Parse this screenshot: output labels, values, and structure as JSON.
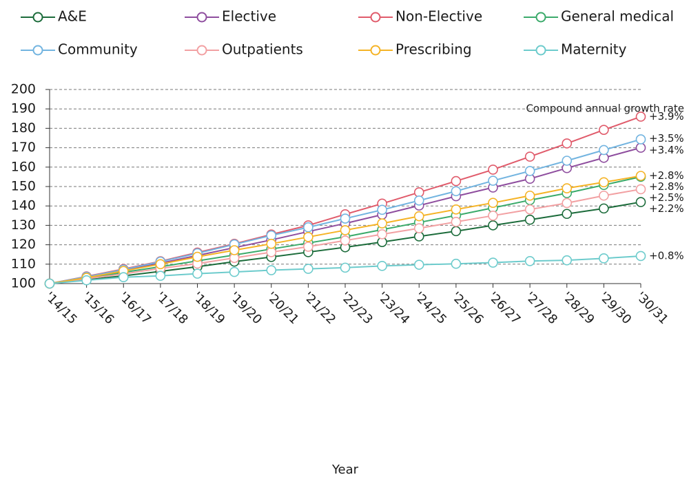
{
  "chart_data": {
    "type": "line",
    "annotation": "Compound annual growth rate",
    "x_label": "Year",
    "categories": [
      "'14/15",
      "'15/16",
      "'16/17",
      "'17/18",
      "'18/19",
      "'19/20",
      "'20/21",
      "'21/22",
      "'22/23",
      "'23/24",
      "'24/25",
      "'25/26",
      "'26/27",
      "'27/28",
      "'28/29",
      "'29/30",
      "'30/31"
    ],
    "ylim": [
      100,
      200
    ],
    "yticks": [
      100,
      110,
      120,
      130,
      140,
      150,
      160,
      170,
      180,
      190,
      200
    ],
    "grid": true,
    "series": [
      {
        "name": "A&E",
        "color": "#1b6b3a",
        "growth_label": "+2.2%",
        "values": [
          100,
          102,
          104,
          106.3,
          108.7,
          111.3,
          113.7,
          116.2,
          118.7,
          121.4,
          124.3,
          127,
          130,
          132.9,
          135.9,
          138.7,
          142
        ]
      },
      {
        "name": "Elective",
        "color": "#8e4d9e",
        "growth_label": "+3.4%",
        "values": [
          100,
          103.3,
          106.8,
          110.5,
          114.5,
          118.5,
          122.5,
          126.8,
          131,
          135.5,
          140.2,
          145,
          149.5,
          154,
          159.5,
          164.8,
          170
        ]
      },
      {
        "name": "Non-Elective",
        "color": "#e05a6a",
        "growth_label": "+3.9%",
        "values": [
          100,
          103.7,
          107.5,
          111.5,
          116,
          120.5,
          125.3,
          130,
          135.7,
          141.2,
          147,
          152.8,
          158.7,
          165.4,
          172.2,
          179.2,
          186
        ]
      },
      {
        "name": "General medical",
        "color": "#3aaa6a",
        "growth_label": "+2.8%",
        "values": [
          100,
          102.7,
          105.8,
          108.7,
          111.7,
          114.7,
          117.8,
          120.9,
          124.1,
          127.8,
          131.5,
          135.1,
          139,
          143,
          146.6,
          150.8,
          155
        ]
      },
      {
        "name": "Community",
        "color": "#72b4e0",
        "growth_label": "+3.5%",
        "values": [
          100,
          103.5,
          107.2,
          111.3,
          115.6,
          120.2,
          124.8,
          129,
          133.5,
          138,
          142.8,
          147.6,
          153,
          158,
          163.3,
          168.8,
          174.3
        ]
      },
      {
        "name": "Outpatients",
        "color": "#f2a0a2",
        "growth_label": "+2.5%",
        "values": [
          100,
          102.5,
          105,
          107.8,
          110.3,
          113.2,
          116.2,
          119,
          122.2,
          125.4,
          128.5,
          131.8,
          135,
          138.2,
          141.5,
          145.3,
          148.6
        ]
      },
      {
        "name": "Prescribing",
        "color": "#f5b325",
        "growth_label": "+2.8%",
        "values": [
          100,
          103,
          106.5,
          110,
          113.8,
          117.2,
          120.5,
          124,
          127.5,
          131,
          134.7,
          138.2,
          141.6,
          145.3,
          149.1,
          152.2,
          155.5
        ]
      },
      {
        "name": "Maternity",
        "color": "#6ccbcc",
        "growth_label": "+0.8%",
        "values": [
          100,
          101.7,
          103.3,
          104,
          105.1,
          106,
          106.9,
          107.6,
          108.2,
          109.1,
          109.7,
          110.2,
          110.8,
          111.6,
          112,
          113,
          114.2
        ]
      }
    ]
  }
}
